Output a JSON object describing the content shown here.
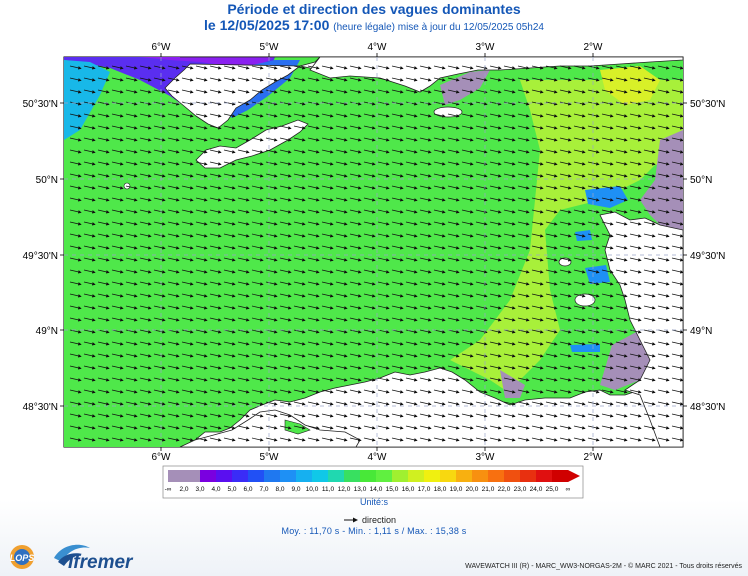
{
  "title": "Période et direction des vagues dominantes",
  "subtitle": {
    "datetime": "le 12/05/2025 17:00",
    "note": "(heure légale) mise à jour du 12/05/2025 05h24"
  },
  "axes": {
    "lon_labels": [
      "6°W",
      "5°W",
      "4°W",
      "3°W",
      "2°W"
    ],
    "lat_labels": [
      "50°30'N",
      "50°N",
      "49°30'N",
      "49°N",
      "48°30'N"
    ]
  },
  "legend": {
    "values": [
      "-∞",
      "2,0",
      "3,0",
      "4,0",
      "5,0",
      "6,0",
      "7,0",
      "8,0",
      "9,0",
      "10,0",
      "11,0",
      "12,0",
      "13,0",
      "14,0",
      "15,0",
      "16,0",
      "17,0",
      "18,0",
      "19,0",
      "20,0",
      "21,0",
      "22,0",
      "23,0",
      "24,0",
      "25,0",
      "∞"
    ],
    "colors": [
      "#a58fb8",
      "#a58fb8",
      "#7a00e0",
      "#5a0ff0",
      "#3a2cf7",
      "#2150f5",
      "#1f78f0",
      "#1e90f5",
      "#16b0f0",
      "#10c8e8",
      "#20d8b0",
      "#38e060",
      "#48e838",
      "#60f040",
      "#a0f030",
      "#d0f020",
      "#f0f010",
      "#f8d810",
      "#f8b010",
      "#f89010",
      "#f87010",
      "#f05010",
      "#e83010",
      "#e01010",
      "#d00000"
    ],
    "unit": "Unité:s",
    "direction_label": "direction"
  },
  "stats": "Moy. : 11,70 s   -   Min. : 1,11 s / Max. : 15,38 s",
  "footer": "WAVEWATCH III (R) - MARC_WW3-NORGAS-2M - © MARC 2021 - Tous droits réservés",
  "logos": {
    "ifremer": "Ifremer",
    "lops": "LOPS"
  },
  "colors": {
    "title": "#1457b7",
    "sea_main": "#4fe84a",
    "sea_deep": "#5a2ef0",
    "land": "#ffffff",
    "coast_lowperiod": "#a58fb8",
    "sea_yellowgreen": "#a8f03a"
  }
}
